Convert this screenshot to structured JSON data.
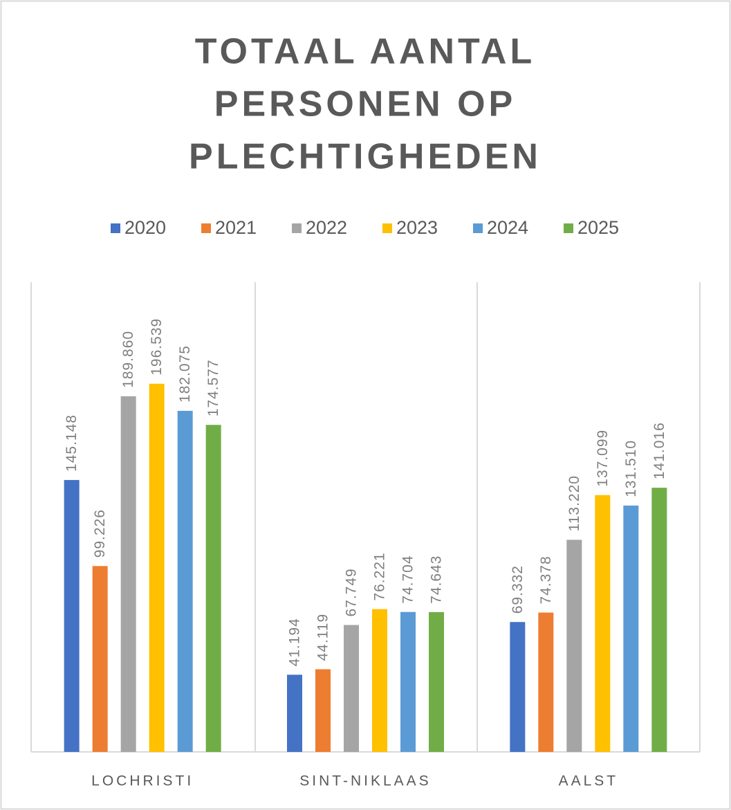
{
  "chart_data": {
    "type": "bar",
    "title": [
      "TOTAAL  AANTAL",
      "PERSONEN  OP",
      "PLECHTIGHEDEN"
    ],
    "categories": [
      "LOCHRISTI",
      "SINT-NIKLAAS",
      "AALST"
    ],
    "series": [
      {
        "name": "2020",
        "color": "#4472c4",
        "values": [
          145148,
          41194,
          69332
        ],
        "value_labels": [
          "145.148",
          "41.194",
          "69.332"
        ]
      },
      {
        "name": "2021",
        "color": "#ed7d31",
        "values": [
          99226,
          44119,
          74378
        ],
        "value_labels": [
          "99.226",
          "44.119",
          "74.378"
        ]
      },
      {
        "name": "2022",
        "color": "#a5a5a5",
        "values": [
          189860,
          67749,
          113220
        ],
        "value_labels": [
          "189.860",
          "67.749",
          "113.220"
        ]
      },
      {
        "name": "2023",
        "color": "#ffc000",
        "values": [
          196539,
          76221,
          137099
        ],
        "value_labels": [
          "196.539",
          "76.221",
          "137.099"
        ]
      },
      {
        "name": "2024",
        "color": "#5b9bd5",
        "values": [
          182075,
          74704,
          131510
        ],
        "value_labels": [
          "182.075",
          "74.704",
          "131.510"
        ]
      },
      {
        "name": "2025",
        "color": "#70ad47",
        "values": [
          174577,
          74643,
          141016
        ],
        "value_labels": [
          "174.577",
          "74.643",
          "141.016"
        ]
      }
    ],
    "ylim": [
      0,
      250000
    ],
    "legend": "top"
  }
}
